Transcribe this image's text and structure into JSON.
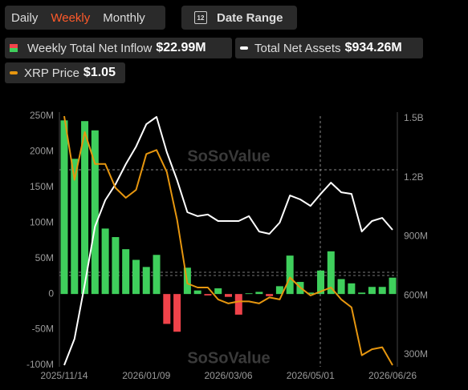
{
  "ui": {
    "tabs": [
      "Daily",
      "Weekly",
      "Monthly"
    ],
    "active_tab": 1,
    "date_range": "Date Range",
    "calendar_icon": "12",
    "watermark": "SoSoValue"
  },
  "chart_data": {
    "type": "combo",
    "categories": [
      "2025/11/14",
      null,
      null,
      null,
      null,
      null,
      null,
      null,
      "2026/01/09",
      null,
      null,
      null,
      null,
      null,
      null,
      null,
      "2026/03/06",
      null,
      null,
      null,
      null,
      null,
      null,
      null,
      "2026/05/01",
      null,
      null,
      null,
      null,
      null,
      null,
      null,
      "2026/06/26"
    ],
    "series": [
      {
        "name": "Weekly Total Net Inflow",
        "type": "bar",
        "axis": "y",
        "color": "#3fcf5c",
        "negative_color": "#f0434a",
        "latest_label": "$22.99M",
        "values": [
          244,
          190,
          243,
          230,
          92,
          80,
          63,
          48,
          38,
          55,
          -42,
          -53,
          37,
          5,
          -2,
          8,
          -4,
          -29,
          1,
          3,
          -3,
          11,
          54,
          17,
          2,
          33,
          60,
          21,
          15,
          2,
          10,
          10,
          22.99
        ]
      },
      {
        "name": "Total Net Assets",
        "type": "line",
        "axis": "y2",
        "color": "#ffffff",
        "latest_label": "$934.26M",
        "values": [
          247,
          381,
          658,
          951,
          1085,
          1166,
          1268,
          1357,
          1471,
          1508,
          1329,
          1187,
          1024,
          1004,
          1012,
          979,
          979,
          979,
          1004,
          926,
          914,
          971,
          1109,
          1089,
          1056,
          1117,
          1174,
          1125,
          1117,
          926,
          979,
          995,
          934.26
        ]
      },
      {
        "name": "XRP Price",
        "type": "line",
        "color": "#e6960f",
        "latest_label": "$1.05",
        "values": [
          2.3,
          1.98,
          2.22,
          2.06,
          2.06,
          1.94,
          1.89,
          1.93,
          2.11,
          2.13,
          2.02,
          1.78,
          1.46,
          1.44,
          1.44,
          1.38,
          1.36,
          1.37,
          1.37,
          1.36,
          1.39,
          1.38,
          1.49,
          1.44,
          1.4,
          1.42,
          1.44,
          1.38,
          1.34,
          1.1,
          1.13,
          1.14,
          1.05
        ]
      }
    ],
    "ylim": [
      -100,
      250
    ],
    "yticks": [
      {
        "value": -100,
        "label": "-100M"
      },
      {
        "value": -50,
        "label": "-50M"
      },
      0,
      {
        "value": 50,
        "label": "50M"
      },
      {
        "value": 100,
        "label": "100M"
      },
      {
        "value": 150,
        "label": "150M"
      },
      {
        "value": 200,
        "label": "200M"
      },
      {
        "value": 250,
        "label": "250M"
      }
    ],
    "y2lim": [
      247,
      1512
    ],
    "y2ticks": [
      {
        "value": 300,
        "label": "300M"
      },
      {
        "value": 600,
        "label": "600M"
      },
      {
        "value": 900,
        "label": "900M"
      },
      {
        "value": 1200,
        "label": "1.2B"
      },
      {
        "value": 1500,
        "label": "1.5B"
      }
    ]
  }
}
